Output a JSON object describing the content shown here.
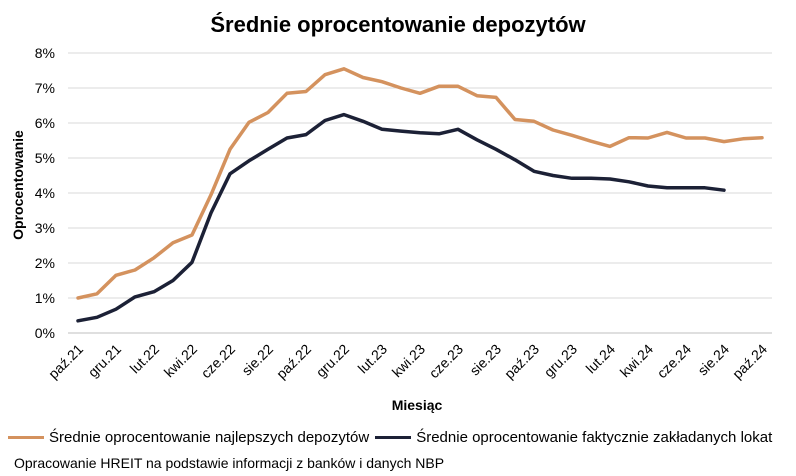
{
  "chart_data": {
    "type": "line",
    "title": "Średnie oprocentowanie depozytów",
    "xlabel": "Miesiąc",
    "ylabel": "Oprocentowanie",
    "ylim": [
      0,
      8
    ],
    "yticks": [
      0,
      1,
      2,
      3,
      4,
      5,
      6,
      7,
      8
    ],
    "ytick_labels": [
      "0%",
      "1%",
      "2%",
      "3%",
      "4%",
      "5%",
      "6%",
      "7%",
      "8%"
    ],
    "grid": "horizontal",
    "legend_position": "bottom",
    "x": [
      "paź.21",
      "lis.21",
      "gru.21",
      "sty.22",
      "lut.22",
      "mar.22",
      "kwi.22",
      "maj.22",
      "cze.22",
      "lip.22",
      "sie.22",
      "wrz.22",
      "paź.22",
      "lis.22",
      "gru.22",
      "sty.23",
      "lut.23",
      "mar.23",
      "kwi.23",
      "maj.23",
      "cze.23",
      "lip.23",
      "sie.23",
      "wrz.23",
      "paź.23",
      "lis.23",
      "gru.23",
      "sty.24",
      "lut.24",
      "mar.24",
      "kwi.24",
      "maj.24",
      "cze.24",
      "lip.24",
      "sie.24",
      "wrz.24",
      "paź.24"
    ],
    "xtick_labels": [
      "paź.21",
      "gru.21",
      "lut.22",
      "kwi.22",
      "cze.22",
      "sie.22",
      "paź.22",
      "gru.22",
      "lut.23",
      "kwi.23",
      "cze.23",
      "sie.23",
      "paź.23",
      "gru.23",
      "lut.24",
      "kwi.24",
      "cze.24",
      "sie.24",
      "paź.24"
    ],
    "series": [
      {
        "name": "Średnie oprocentowanie najlepszych depozytów",
        "color": "#D4925E",
        "values": [
          1.0,
          1.12,
          1.65,
          1.8,
          2.15,
          2.58,
          2.8,
          3.95,
          5.25,
          6.02,
          6.3,
          6.85,
          6.9,
          7.38,
          7.55,
          7.3,
          7.18,
          7.0,
          6.85,
          7.05,
          7.05,
          6.78,
          6.73,
          6.1,
          6.05,
          5.8,
          5.65,
          5.48,
          5.33,
          5.58,
          5.57,
          5.73,
          5.57,
          5.57,
          5.47,
          5.55,
          5.58
        ]
      },
      {
        "name": "Średnie oprocentowanie faktycznie zakładanych lokat",
        "color": "#1C2136",
        "values": [
          0.35,
          0.45,
          0.68,
          1.03,
          1.18,
          1.5,
          2.02,
          3.43,
          4.55,
          4.92,
          5.25,
          5.57,
          5.67,
          6.07,
          6.24,
          6.05,
          5.82,
          5.77,
          5.72,
          5.69,
          5.82,
          5.52,
          5.25,
          4.95,
          4.62,
          4.5,
          4.42,
          4.42,
          4.4,
          4.32,
          4.2,
          4.15,
          4.15,
          4.15,
          4.08,
          null,
          null
        ]
      }
    ]
  },
  "source_note": "Opracowanie HREIT na podstawie informacji z banków i danych NBP"
}
